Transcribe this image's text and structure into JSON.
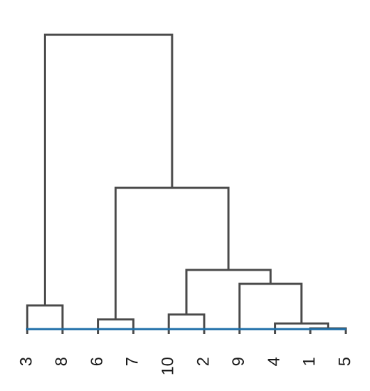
{
  "dendrogram": {
    "leaves": [
      "3",
      "8",
      "6",
      "7",
      "10",
      "2",
      "9",
      "4",
      "1",
      "5"
    ],
    "merges": [
      {
        "name": "merge-1-5",
        "left": "leaf:8",
        "right": "leaf:9",
        "height": 0.4
      },
      {
        "name": "merge-4-1-5",
        "left": "leaf:7",
        "right": "node:merge-1-5",
        "height": 0.75
      },
      {
        "name": "merge-10-2",
        "left": "leaf:4",
        "right": "leaf:5",
        "height": 1.4
      },
      {
        "name": "merge-6-7",
        "left": "leaf:2",
        "right": "leaf:3",
        "height": 1.05
      },
      {
        "name": "merge-3-8",
        "left": "leaf:0",
        "right": "leaf:1",
        "height": 2.05
      },
      {
        "name": "merge-9-4-1-5",
        "left": "leaf:6",
        "right": "node:merge-4-1-5",
        "height": 3.6
      },
      {
        "name": "merge-10-2-9-4-1-5",
        "left": "node:merge-10-2",
        "right": "node:merge-9-4-1-5",
        "height": 4.6
      },
      {
        "name": "merge-6-7-rest",
        "left": "node:merge-6-7",
        "right": "node:merge-10-2-9-4-1-5",
        "height": 10.5
      },
      {
        "name": "merge-root",
        "left": "node:merge-3-8",
        "right": "node:merge-6-7-rest",
        "height": 21.5
      }
    ],
    "cut_height": 0.4,
    "colors": {
      "branch": "#4a4a4a",
      "cut_line": "#1f6fa8",
      "label": "#1a1a1a"
    }
  }
}
